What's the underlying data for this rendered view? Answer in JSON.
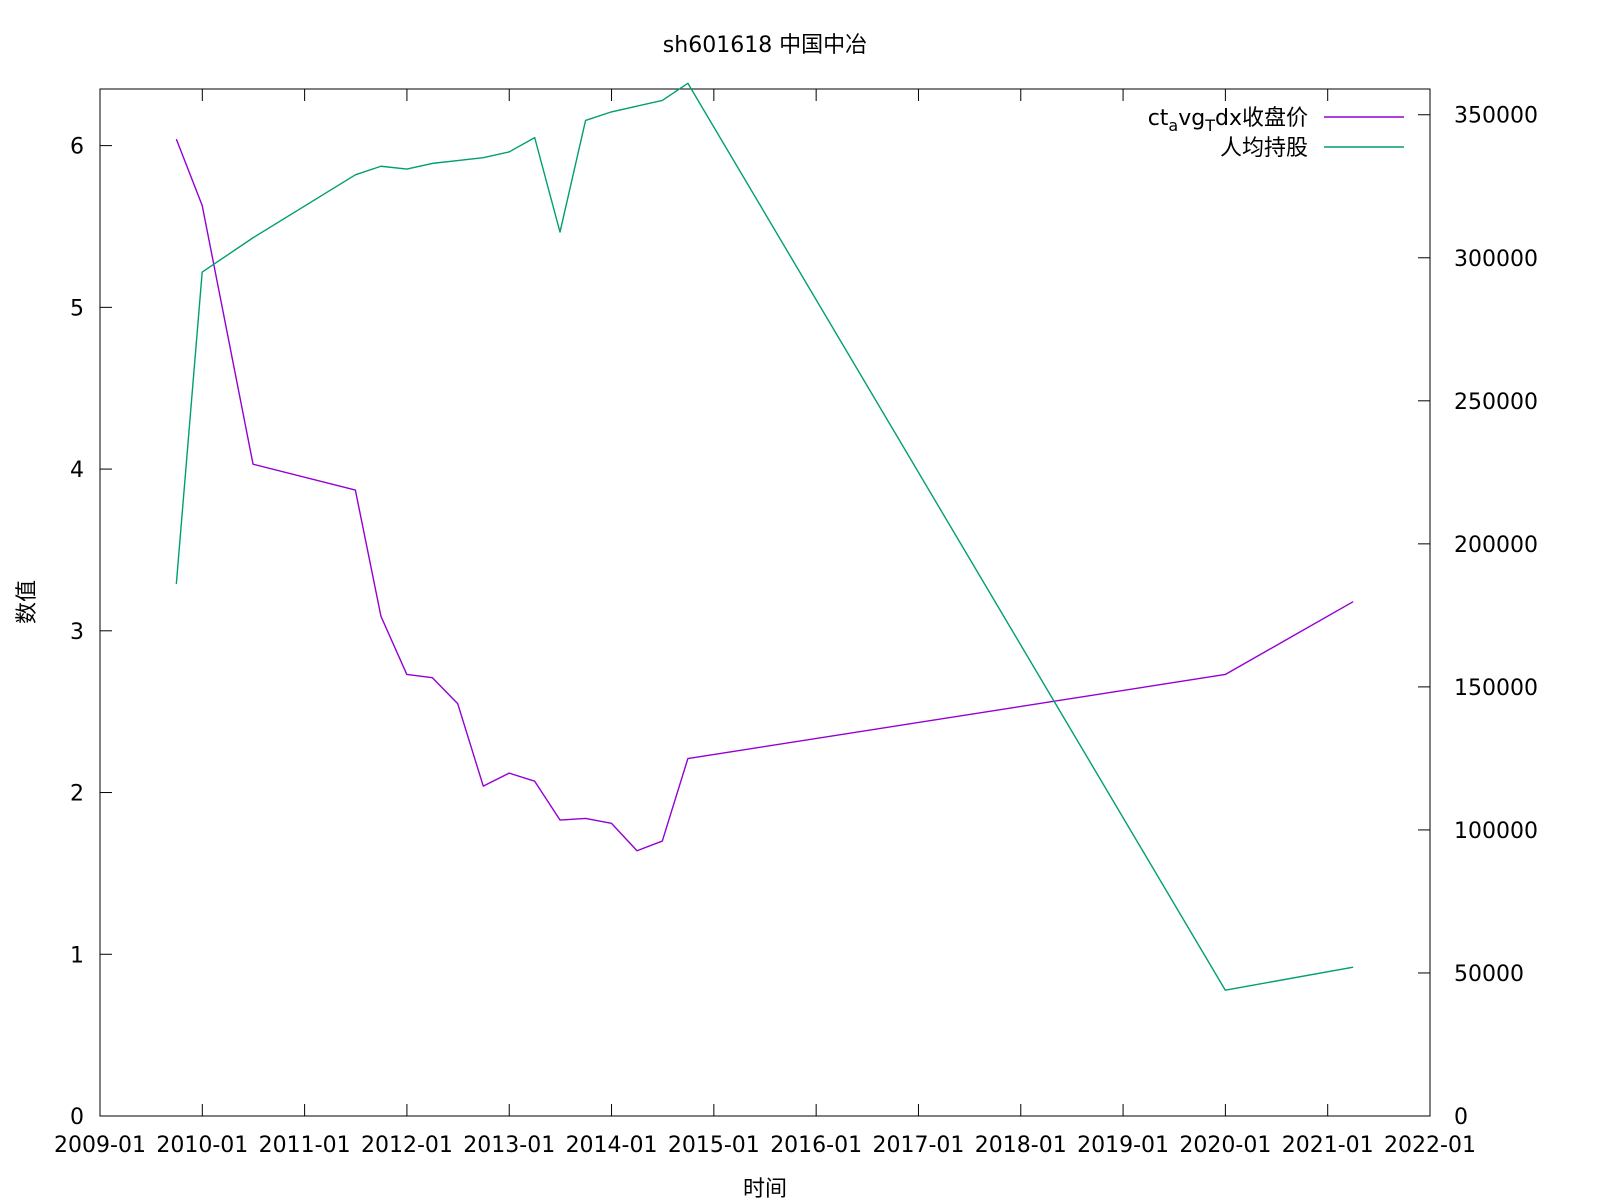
{
  "chart_data": {
    "type": "line",
    "title": "sh601618 中国中冶",
    "xlabel": "时间",
    "ylabel": "数值",
    "y2label": "",
    "xlim": [
      "2009-01",
      "2022-01"
    ],
    "ylim": [
      0,
      6.35
    ],
    "y2lim": [
      0,
      359000
    ],
    "x_ticks": [
      "2009-01",
      "2010-01",
      "2011-01",
      "2012-01",
      "2013-01",
      "2014-01",
      "2015-01",
      "2016-01",
      "2017-01",
      "2018-01",
      "2019-01",
      "2020-01",
      "2021-01",
      "2022-01"
    ],
    "y_ticks": [
      0,
      1,
      2,
      3,
      4,
      5,
      6
    ],
    "y2_ticks": [
      0,
      50000,
      100000,
      150000,
      200000,
      250000,
      300000,
      350000
    ],
    "grid": false,
    "legend_position": "top-right",
    "series": [
      {
        "name": "ctₐvg₝dx收盘价",
        "legend_parts": [
          "ct",
          "a",
          "vg",
          "T",
          "dx收盘价"
        ],
        "axis": "left",
        "color": "#9400d3",
        "points": [
          [
            "2009-09-30",
            6.04
          ],
          [
            "2009-12-31",
            5.63
          ],
          [
            "2010-06-30",
            4.03
          ],
          [
            "2011-06-30",
            3.87
          ],
          [
            "2011-09-30",
            3.09
          ],
          [
            "2011-12-31",
            2.73
          ],
          [
            "2012-03-31",
            2.71
          ],
          [
            "2012-06-30",
            2.55
          ],
          [
            "2012-09-30",
            2.04
          ],
          [
            "2012-12-31",
            2.12
          ],
          [
            "2013-03-31",
            2.07
          ],
          [
            "2013-06-30",
            1.83
          ],
          [
            "2013-09-30",
            1.84
          ],
          [
            "2013-12-31",
            1.81
          ],
          [
            "2014-03-31",
            1.64
          ],
          [
            "2014-06-30",
            1.7
          ],
          [
            "2014-09-30",
            2.21
          ],
          [
            "2019-12-31",
            2.73
          ],
          [
            "2021-03-31",
            3.18
          ]
        ]
      },
      {
        "name": "人均持股",
        "axis": "right",
        "color": "#009e73",
        "points": [
          [
            "2009-09-30",
            186000
          ],
          [
            "2009-12-31",
            295000
          ],
          [
            "2010-06-30",
            307000
          ],
          [
            "2011-06-30",
            329000
          ],
          [
            "2011-09-30",
            332000
          ],
          [
            "2011-12-31",
            331000
          ],
          [
            "2012-03-31",
            333000
          ],
          [
            "2012-06-30",
            334000
          ],
          [
            "2012-09-30",
            335000
          ],
          [
            "2012-12-31",
            337000
          ],
          [
            "2013-03-31",
            342000
          ],
          [
            "2013-06-30",
            309000
          ],
          [
            "2013-09-30",
            348000
          ],
          [
            "2013-12-31",
            351000
          ],
          [
            "2014-06-30",
            355000
          ],
          [
            "2014-09-30",
            361000
          ],
          [
            "2019-12-31",
            44000
          ],
          [
            "2021-03-31",
            52000
          ]
        ]
      }
    ]
  }
}
